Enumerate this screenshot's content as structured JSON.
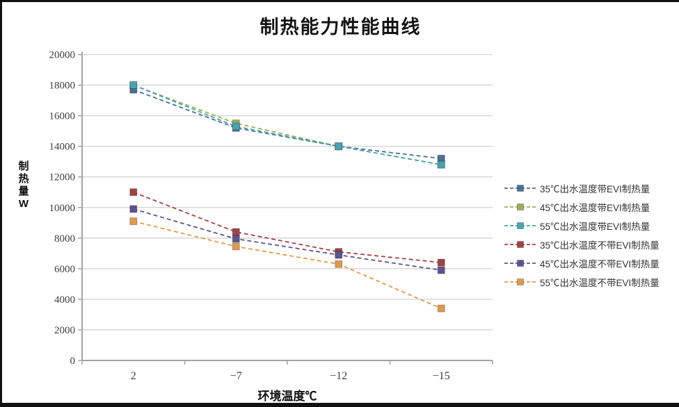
{
  "chart_data": {
    "type": "line",
    "title": "制热能力性能曲线",
    "xlabel": "环境温度℃",
    "ylabel": "制热量W",
    "ylabel_lines": [
      "制",
      "热",
      "量",
      "W"
    ],
    "categories": [
      "2",
      "−7",
      "−12",
      "−15"
    ],
    "ylim": [
      0,
      20000
    ],
    "yticks": [
      0,
      2000,
      4000,
      6000,
      8000,
      10000,
      12000,
      14000,
      16000,
      18000,
      20000
    ],
    "grid": true,
    "line_style": "dashed",
    "marker": "square",
    "legend_position": "right",
    "axis_color": "#a3a3a3",
    "grid_color": "#d2d2d2",
    "series": [
      {
        "name": "35℃出水温度带EVI制热量",
        "color": "#4d6f96",
        "values": [
          17700,
          15200,
          14000,
          13200
        ]
      },
      {
        "name": "45℃出水温度带EVI制热量",
        "color": "#9cac5e",
        "values": [
          18000,
          15500,
          14000,
          12800
        ]
      },
      {
        "name": "55℃出水温度带EVI制热量",
        "color": "#4aa3ad",
        "values": [
          18000,
          15300,
          14000,
          12800
        ]
      },
      {
        "name": "35℃出水温度不带EVI制热量",
        "color": "#9e4449",
        "values": [
          11000,
          8400,
          7100,
          6400
        ]
      },
      {
        "name": "45℃出水温度不带EVI制热量",
        "color": "#5e538c",
        "values": [
          9900,
          7950,
          6900,
          5900
        ]
      },
      {
        "name": "55℃出水温度不带EVI制热量",
        "color": "#dc9b52",
        "values": [
          9100,
          7450,
          6300,
          3400
        ]
      }
    ]
  }
}
